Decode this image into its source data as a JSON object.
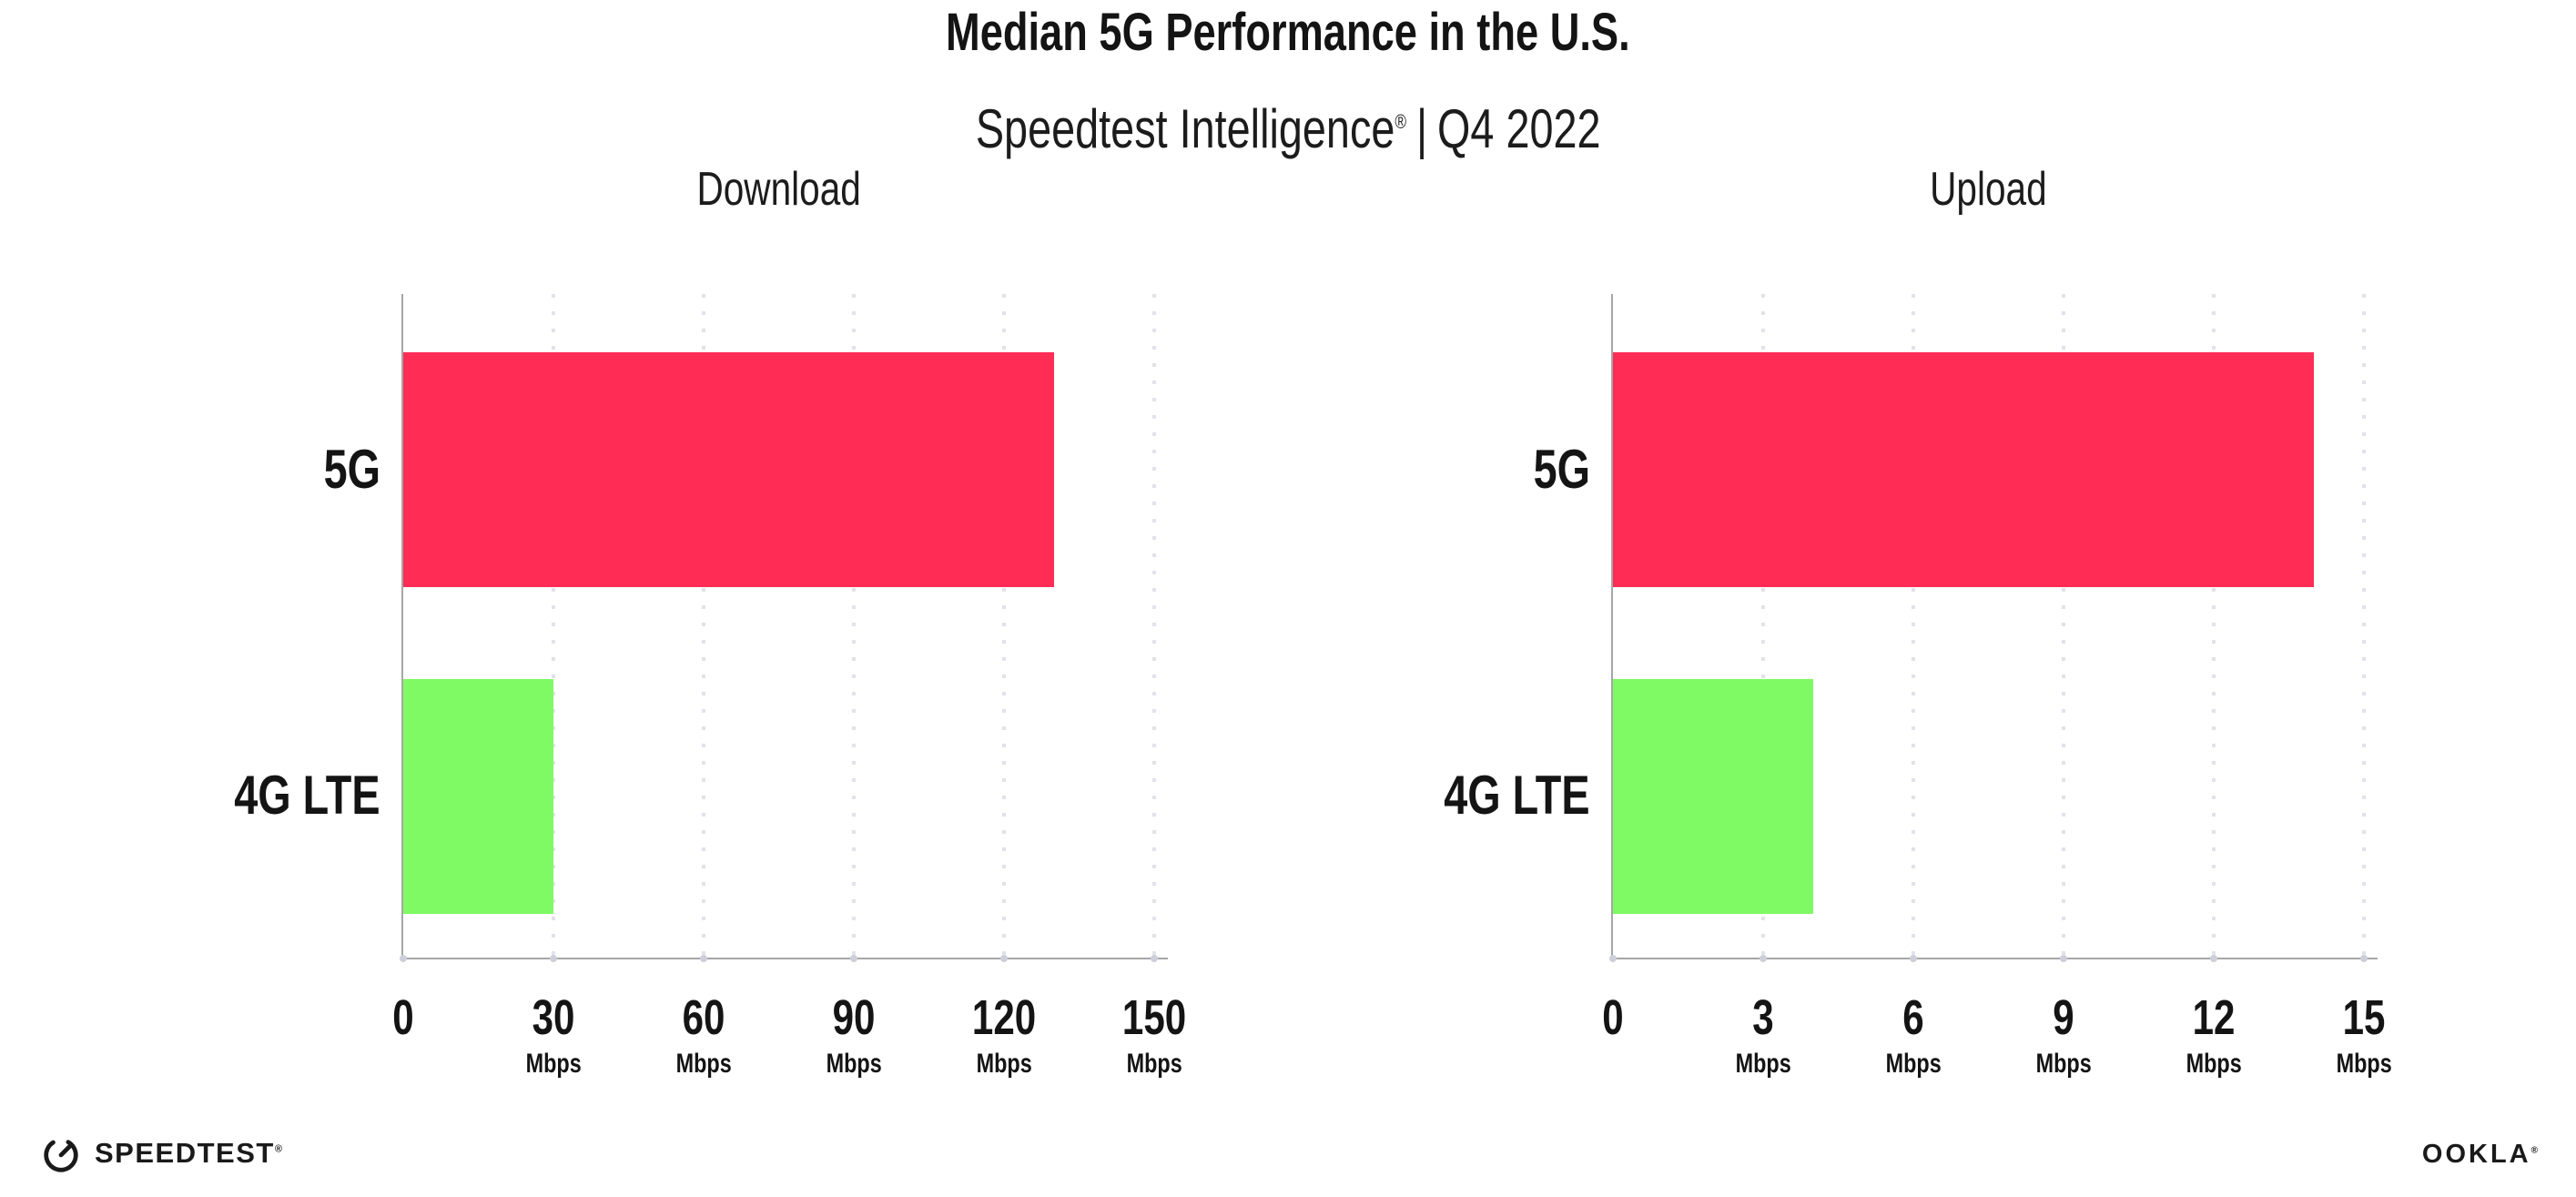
{
  "header": {
    "title": "Median 5G Performance in the U.S.",
    "subtitle_brand": "Speedtest Intelligence",
    "subtitle_reg": "®",
    "subtitle_sep": "|",
    "subtitle_period": "Q4 2022"
  },
  "colors": {
    "bar_5g": "#FF2D55",
    "bar_4g_lte": "#80FA64",
    "axis": "#a6a6a6",
    "gridline": "#e2e2ea",
    "text": "#141414"
  },
  "chart_data": [
    {
      "type": "bar",
      "orientation": "horizontal",
      "title": "Download",
      "categories": [
        "5G",
        "4G LTE"
      ],
      "values": [
        130,
        30
      ],
      "colors": [
        "#FF2D55",
        "#80FA64"
      ],
      "unit": "Mbps",
      "xlim": [
        0,
        150
      ],
      "xticks": [
        0,
        30,
        60,
        90,
        120,
        150
      ],
      "grid": "vertical-dotted",
      "legend": "none"
    },
    {
      "type": "bar",
      "orientation": "horizontal",
      "title": "Upload",
      "categories": [
        "5G",
        "4G LTE"
      ],
      "values": [
        14,
        4
      ],
      "colors": [
        "#FF2D55",
        "#80FA64"
      ],
      "unit": "Mbps",
      "xlim": [
        0,
        15
      ],
      "xticks": [
        0,
        3,
        6,
        9,
        12,
        15
      ],
      "grid": "vertical-dotted",
      "legend": "none"
    }
  ],
  "footer": {
    "speedtest_label": "SPEEDTEST",
    "speedtest_reg": "®",
    "ookla_label": "OOKLA",
    "ookla_reg": "®"
  }
}
